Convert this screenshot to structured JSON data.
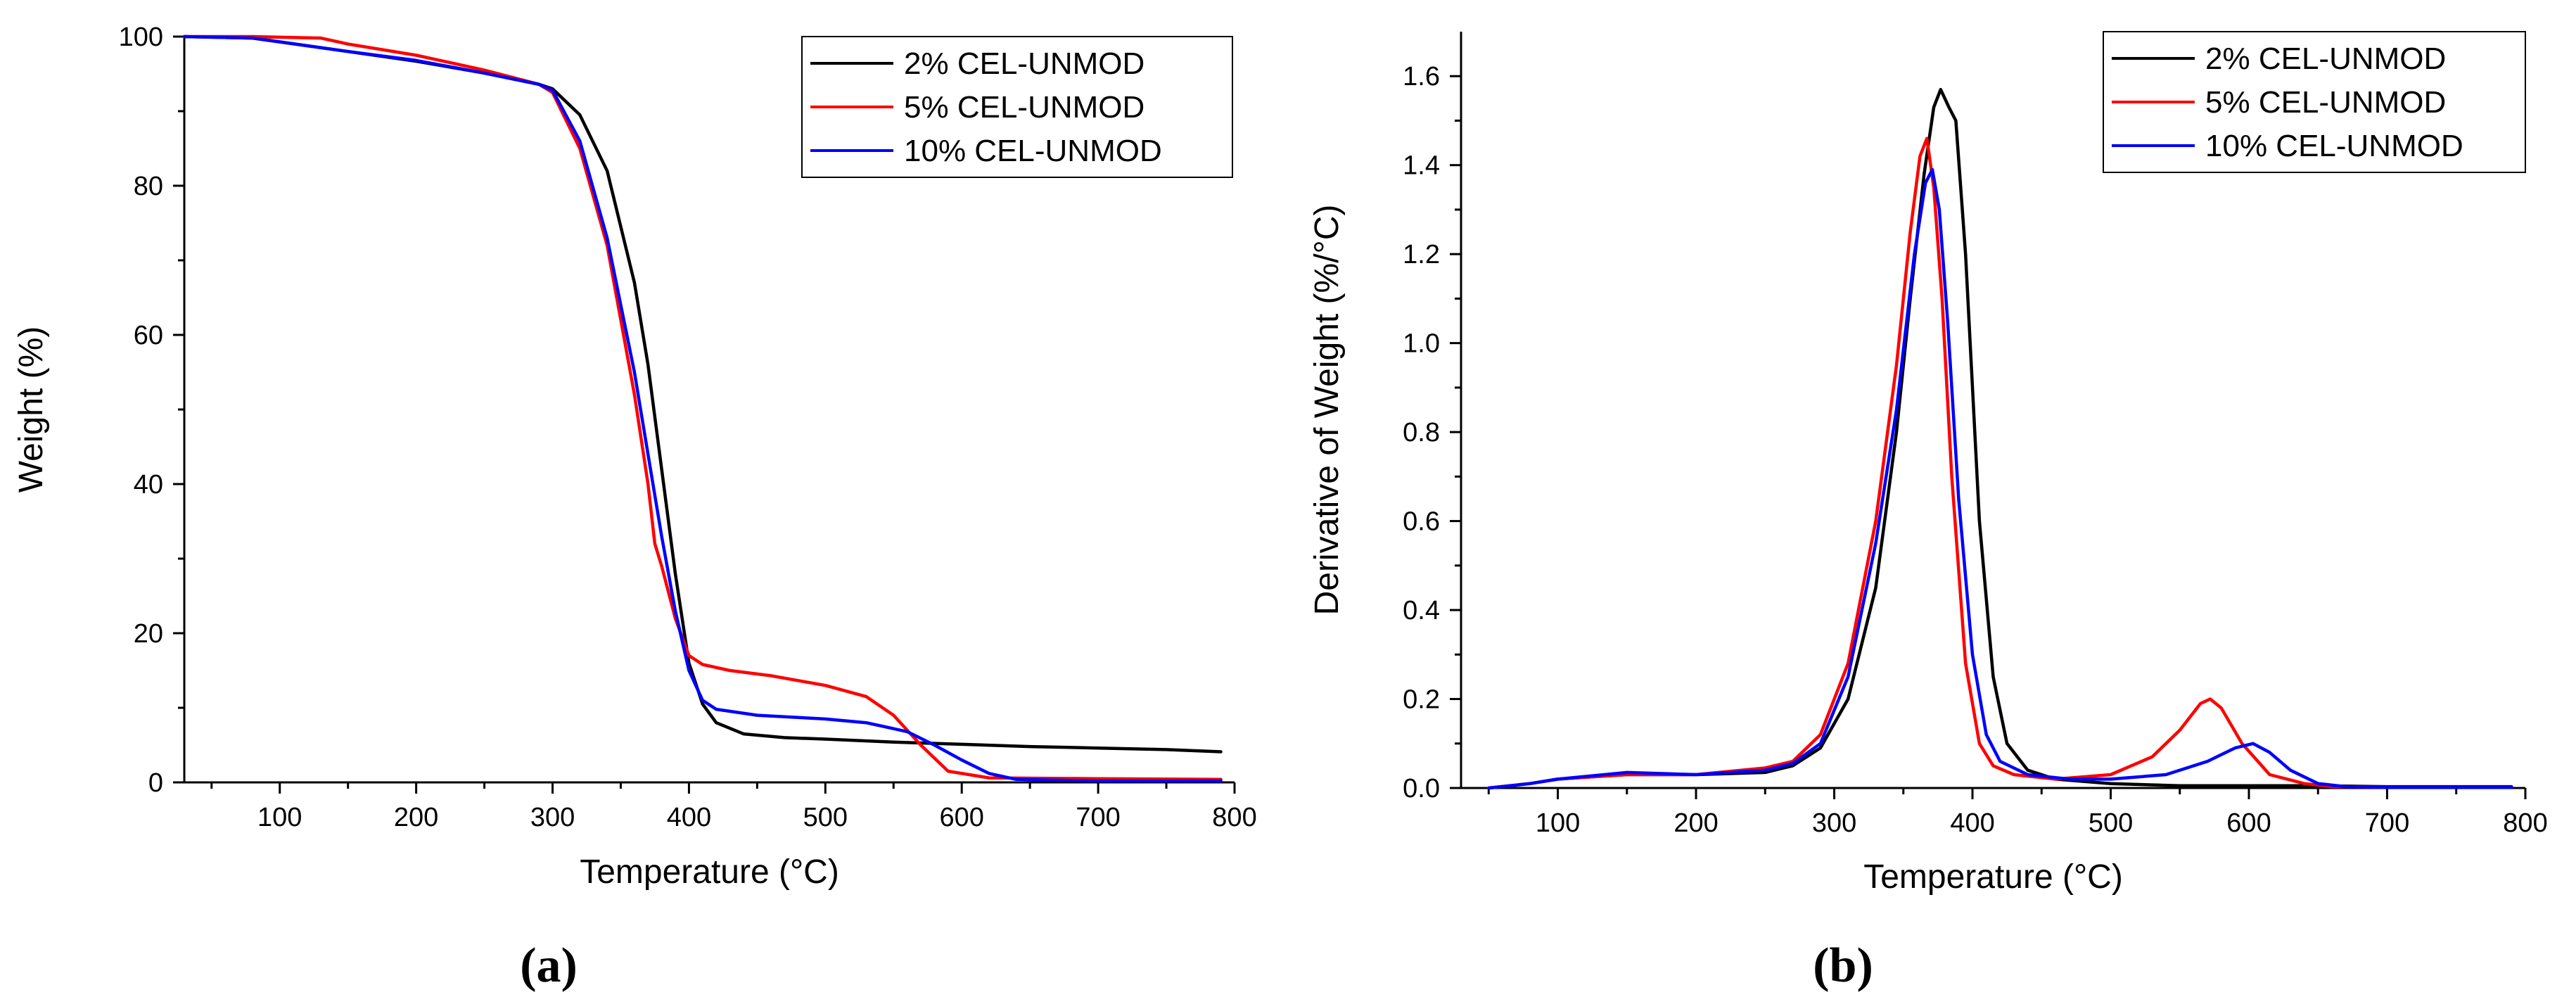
{
  "chart_data": [
    {
      "type": "line",
      "panel_label": "(a)",
      "xlabel": "Temperature (°C)",
      "ylabel": "Weight (%)",
      "xlim": [
        30,
        800
      ],
      "ylim": [
        0,
        100
      ],
      "xticks": [
        100,
        200,
        300,
        400,
        500,
        600,
        700,
        800
      ],
      "yticks": [
        0,
        20,
        40,
        60,
        80,
        100
      ],
      "legend_position": "top-right",
      "series": [
        {
          "name": "2% CEL-UNMOD",
          "color": "#000000",
          "x": [
            30,
            80,
            150,
            200,
            250,
            290,
            300,
            320,
            340,
            360,
            370,
            380,
            390,
            400,
            410,
            420,
            440,
            470,
            500,
            550,
            600,
            650,
            700,
            750,
            790
          ],
          "y": [
            100,
            99.8,
            98.0,
            96.7,
            95.1,
            93.6,
            93.0,
            89.5,
            82.0,
            67.0,
            56.0,
            42.0,
            28.0,
            16.0,
            10.5,
            8.0,
            6.5,
            6.0,
            5.8,
            5.4,
            5.1,
            4.8,
            4.6,
            4.4,
            4.1
          ]
        },
        {
          "name": "5% CEL-UNMOD",
          "color": "#ff0000",
          "x": [
            30,
            80,
            130,
            150,
            200,
            250,
            290,
            300,
            320,
            340,
            360,
            370,
            375,
            380,
            390,
            400,
            410,
            430,
            460,
            500,
            530,
            550,
            570,
            590,
            620,
            700,
            790
          ],
          "y": [
            100,
            100,
            99.8,
            99.0,
            97.5,
            95.5,
            93.6,
            92.5,
            85.0,
            72.0,
            52.0,
            40.0,
            32.0,
            29.0,
            22.0,
            17.0,
            15.8,
            15.0,
            14.3,
            13.0,
            11.5,
            9.0,
            5.0,
            1.5,
            0.6,
            0.5,
            0.4
          ]
        },
        {
          "name": "10% CEL-UNMOD",
          "color": "#0000ff",
          "x": [
            30,
            80,
            150,
            200,
            250,
            290,
            300,
            320,
            340,
            360,
            370,
            380,
            390,
            400,
            410,
            420,
            450,
            500,
            530,
            560,
            580,
            600,
            620,
            640,
            700,
            790
          ],
          "y": [
            100,
            99.8,
            98.0,
            96.8,
            95.1,
            93.6,
            92.8,
            86.0,
            73.0,
            55.0,
            44.0,
            33.0,
            23.0,
            15.0,
            11.0,
            9.8,
            9.0,
            8.5,
            8.0,
            6.8,
            5.0,
            3.0,
            1.2,
            0.4,
            0.2,
            0.2
          ]
        }
      ]
    },
    {
      "type": "line",
      "panel_label": "(b)",
      "xlabel": "Temperature (°C)",
      "ylabel": "Derivative of Weight (%/°C)",
      "xlim": [
        30,
        800
      ],
      "ylim": [
        0,
        1.7
      ],
      "xticks": [
        100,
        200,
        300,
        400,
        500,
        600,
        700,
        800
      ],
      "yticks": [
        0.0,
        0.2,
        0.4,
        0.6,
        0.8,
        1.0,
        1.2,
        1.4,
        1.6
      ],
      "ytick_labels": [
        "0.0",
        "0.2",
        "0.4",
        "0.6",
        "0.8",
        "1.0",
        "1.2",
        "1.4",
        "1.6"
      ],
      "legend_position": "top-right",
      "series": [
        {
          "name": "2% CEL-UNMOD",
          "color": "#000000",
          "x": [
            50,
            80,
            100,
            150,
            200,
            250,
            270,
            290,
            310,
            330,
            345,
            355,
            365,
            372,
            377,
            383,
            388,
            395,
            405,
            415,
            425,
            440,
            460,
            500,
            550,
            600,
            650,
            700,
            790
          ],
          "y": [
            0.0,
            0.01,
            0.02,
            0.03,
            0.03,
            0.035,
            0.05,
            0.09,
            0.2,
            0.45,
            0.8,
            1.1,
            1.38,
            1.53,
            1.57,
            1.53,
            1.5,
            1.2,
            0.6,
            0.25,
            0.1,
            0.04,
            0.02,
            0.01,
            0.005,
            0.005,
            0.005,
            0.003,
            0.003
          ]
        },
        {
          "name": "5% CEL-UNMOD",
          "color": "#ff0000",
          "x": [
            50,
            80,
            100,
            150,
            200,
            250,
            270,
            290,
            310,
            330,
            345,
            355,
            362,
            367,
            372,
            378,
            385,
            395,
            405,
            415,
            430,
            460,
            500,
            530,
            550,
            565,
            572,
            580,
            595,
            615,
            640,
            660,
            700,
            790
          ],
          "y": [
            0.0,
            0.01,
            0.02,
            0.03,
            0.03,
            0.045,
            0.06,
            0.12,
            0.28,
            0.6,
            0.95,
            1.25,
            1.42,
            1.46,
            1.35,
            1.1,
            0.7,
            0.28,
            0.1,
            0.05,
            0.03,
            0.02,
            0.03,
            0.07,
            0.13,
            0.19,
            0.2,
            0.18,
            0.1,
            0.03,
            0.01,
            0.003,
            0.002,
            0.002
          ]
        },
        {
          "name": "10% CEL-UNMOD",
          "color": "#0000ff",
          "x": [
            50,
            80,
            100,
            150,
            200,
            250,
            270,
            290,
            310,
            330,
            345,
            358,
            366,
            371,
            376,
            382,
            390,
            400,
            410,
            420,
            440,
            470,
            500,
            540,
            570,
            590,
            603,
            615,
            630,
            650,
            670,
            700,
            790
          ],
          "y": [
            0.0,
            0.01,
            0.02,
            0.035,
            0.03,
            0.04,
            0.055,
            0.1,
            0.25,
            0.55,
            0.85,
            1.2,
            1.36,
            1.39,
            1.3,
            1.05,
            0.65,
            0.3,
            0.12,
            0.06,
            0.03,
            0.02,
            0.02,
            0.03,
            0.06,
            0.09,
            0.1,
            0.08,
            0.04,
            0.01,
            0.003,
            0.002,
            0.002
          ]
        }
      ]
    }
  ]
}
